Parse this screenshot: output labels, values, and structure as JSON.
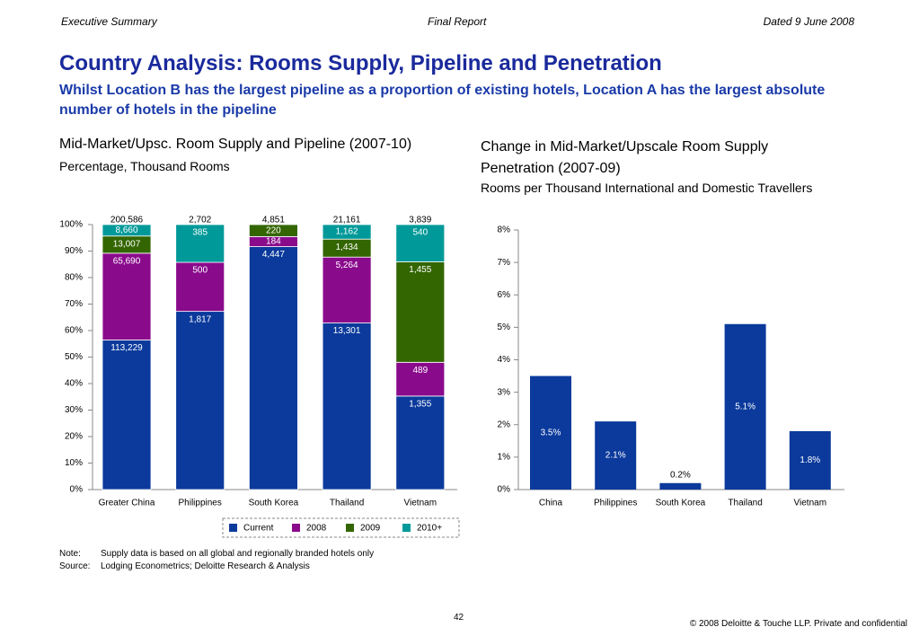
{
  "header": {
    "left": "Executive Summary",
    "center": "Final Report",
    "right": "Dated 9 June 2008"
  },
  "title": "Country Analysis: Rooms Supply, Pipeline and Penetration",
  "subtitle": "Whilst Location B has the largest pipeline as a proportion of existing hotels, Location A has the largest absolute number of hotels in the pipeline",
  "chart_data": [
    {
      "type": "bar",
      "stacked": "percent",
      "title": "Mid-Market/Upsc. Room Supply and Pipeline (2007-10)",
      "subtitle": "Percentage, Thousand Rooms",
      "categories": [
        "Greater China",
        "Philippines",
        "South Korea",
        "Thailand",
        "Vietnam"
      ],
      "series": [
        {
          "name": "Current",
          "color": "#0b3a9c",
          "values": [
            113229,
            1817,
            4447,
            13301,
            1355
          ],
          "value_labels": [
            "113,229",
            "1,817",
            "4,447",
            "13,301",
            "1,355"
          ]
        },
        {
          "name": "2008",
          "color": "#8a0a8c",
          "values": [
            65690,
            500,
            184,
            5264,
            489
          ],
          "value_labels": [
            "65,690",
            "500",
            "184",
            "5,264",
            "489"
          ]
        },
        {
          "name": "2009",
          "color": "#336600",
          "values": [
            13007,
            null,
            220,
            1434,
            1455
          ],
          "value_labels": [
            "13,007",
            null,
            "220",
            "1,434",
            "1,455"
          ]
        },
        {
          "name": "2010+",
          "color": "#009999",
          "values": [
            8660,
            385,
            null,
            1162,
            540
          ],
          "value_labels": [
            "8,660",
            "385",
            null,
            "1,162",
            "540"
          ]
        }
      ],
      "total_labels": [
        "200,586",
        "2,702",
        "4,851",
        "21,161",
        "3,839"
      ],
      "ylim": [
        0,
        100
      ],
      "yticks": [
        {
          "value": 0,
          "label": "0%"
        },
        {
          "value": 10,
          "label": "10%"
        },
        {
          "value": 20,
          "label": "20%"
        },
        {
          "value": 30,
          "label": "30%"
        },
        {
          "value": 40,
          "label": "40%"
        },
        {
          "value": 50,
          "label": "50%"
        },
        {
          "value": 60,
          "label": "60%"
        },
        {
          "value": 70,
          "label": "70%"
        },
        {
          "value": 80,
          "label": "80%"
        },
        {
          "value": 90,
          "label": "90%"
        },
        {
          "value": 100,
          "label": "100%"
        }
      ],
      "legend": "bottom"
    },
    {
      "type": "bar",
      "title": "Change in Mid-Market/Upscale Room Supply Penetration (2007-09)",
      "subtitle": "Rooms per Thousand International and Domestic Travellers",
      "categories": [
        "China",
        "Philippines",
        "South Korea",
        "Thailand",
        "Vietnam"
      ],
      "values": [
        3.5,
        2.1,
        0.2,
        5.1,
        1.8
      ],
      "value_labels": [
        "3.5%",
        "2.1%",
        "0.2%",
        "5.1%",
        "1.8%"
      ],
      "color": "#0b3a9c",
      "ylim": [
        0,
        8
      ],
      "yticks": [
        {
          "value": 0,
          "label": "0%"
        },
        {
          "value": 1,
          "label": "1%"
        },
        {
          "value": 2,
          "label": "2%"
        },
        {
          "value": 3,
          "label": "3%"
        },
        {
          "value": 4,
          "label": "4%"
        },
        {
          "value": 5,
          "label": "5%"
        },
        {
          "value": 6,
          "label": "6%"
        },
        {
          "value": 7,
          "label": "7%"
        },
        {
          "value": 8,
          "label": "8%"
        }
      ]
    }
  ],
  "notes": [
    {
      "label": "Note:",
      "text": "Supply data is based on all global and regionally branded hotels only"
    },
    {
      "label": "Source:",
      "text": "Lodging Econometrics; Deloitte Research & Analysis"
    }
  ],
  "footer": {
    "page": "42",
    "copyright": "© 2008 Deloitte & Touche LLP. Private and confidential"
  }
}
